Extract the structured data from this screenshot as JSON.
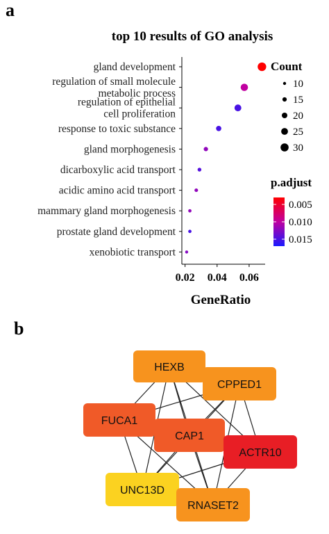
{
  "panels": {
    "a": "a",
    "b": "b"
  },
  "chart_data": {
    "type": "scatter",
    "title": "top 10 results of GO analysis",
    "xlabel": "GeneRatio",
    "ylabel": "",
    "xlim": [
      0.018,
      0.07
    ],
    "xticks": [
      0.02,
      0.04,
      0.06
    ],
    "xtick_labels": [
      "0.02",
      "0.04",
      "0.06"
    ],
    "grid": false,
    "terms": [
      {
        "label": "gland development",
        "lines": [
          "gland development"
        ],
        "gene_ratio": 0.068,
        "count": 32,
        "p_adjust": 0.003
      },
      {
        "label": "regulation of small molecule metabolic process",
        "lines": [
          "regulation of small molecule",
          "metabolic process"
        ],
        "gene_ratio": 0.057,
        "count": 27,
        "p_adjust": 0.01
      },
      {
        "label": "regulation of epithelial cell proliferation",
        "lines": [
          "regulation of epithelial",
          "cell proliferation"
        ],
        "gene_ratio": 0.053,
        "count": 25,
        "p_adjust": 0.015
      },
      {
        "label": "response to toxic substance",
        "lines": [
          "response to toxic substance"
        ],
        "gene_ratio": 0.041,
        "count": 19,
        "p_adjust": 0.015
      },
      {
        "label": "gland morphogenesis",
        "lines": [
          "gland morphogenesis"
        ],
        "gene_ratio": 0.033,
        "count": 15,
        "p_adjust": 0.012
      },
      {
        "label": "dicarboxylic acid transport",
        "lines": [
          "dicarboxylic acid transport"
        ],
        "gene_ratio": 0.029,
        "count": 13,
        "p_adjust": 0.0145
      },
      {
        "label": "acidic amino acid transport",
        "lines": [
          "acidic amino acid transport"
        ],
        "gene_ratio": 0.027,
        "count": 12,
        "p_adjust": 0.012
      },
      {
        "label": "mammary gland morphogenesis",
        "lines": [
          "mammary gland morphogenesis"
        ],
        "gene_ratio": 0.023,
        "count": 11,
        "p_adjust": 0.012
      },
      {
        "label": "prostate gland development",
        "lines": [
          "prostate gland development"
        ],
        "gene_ratio": 0.023,
        "count": 11,
        "p_adjust": 0.015
      },
      {
        "label": "xenobiotic transport",
        "lines": [
          "xenobiotic transport"
        ],
        "gene_ratio": 0.021,
        "count": 10,
        "p_adjust": 0.0125
      }
    ],
    "legend_count": {
      "title": "Count",
      "values": [
        10,
        15,
        20,
        25,
        30
      ],
      "labels": [
        "10",
        "15",
        "20",
        "25",
        "30"
      ],
      "placement": "right"
    },
    "legend_padjust": {
      "title": "p.adjust",
      "range": [
        0.003,
        0.017
      ],
      "ticks": [
        0.005,
        0.01,
        0.015
      ],
      "tick_labels": [
        "0.005",
        "0.010",
        "0.015"
      ],
      "color_low": "#ff0000",
      "color_high": "#1a1aff",
      "placement": "right"
    }
  },
  "network": {
    "nodes": [
      {
        "id": "HEXB",
        "label": "HEXB",
        "color": "#f7931e"
      },
      {
        "id": "CPPED1",
        "label": "CPPED1",
        "color": "#f7931e"
      },
      {
        "id": "FUCA1",
        "label": "FUCA1",
        "color": "#f05a28"
      },
      {
        "id": "CAP1",
        "label": "CAP1",
        "color": "#f05a28"
      },
      {
        "id": "ACTR10",
        "label": "ACTR10",
        "color": "#e81e25"
      },
      {
        "id": "UNC13D",
        "label": "UNC13D",
        "color": "#fbd220"
      },
      {
        "id": "RNASET2",
        "label": "RNASET2",
        "color": "#f7931e"
      }
    ],
    "edges": [
      [
        "HEXB",
        "CPPED1"
      ],
      [
        "HEXB",
        "FUCA1"
      ],
      [
        "HEXB",
        "CAP1"
      ],
      [
        "HEXB",
        "ACTR10"
      ],
      [
        "HEXB",
        "UNC13D"
      ],
      [
        "HEXB",
        "RNASET2"
      ],
      [
        "CPPED1",
        "FUCA1"
      ],
      [
        "CPPED1",
        "CAP1"
      ],
      [
        "CPPED1",
        "ACTR10"
      ],
      [
        "CPPED1",
        "UNC13D"
      ],
      [
        "CPPED1",
        "RNASET2"
      ],
      [
        "FUCA1",
        "CAP1"
      ],
      [
        "FUCA1",
        "ACTR10"
      ],
      [
        "FUCA1",
        "UNC13D"
      ],
      [
        "FUCA1",
        "RNASET2"
      ],
      [
        "CAP1",
        "ACTR10"
      ],
      [
        "CAP1",
        "UNC13D"
      ],
      [
        "CAP1",
        "RNASET2"
      ],
      [
        "ACTR10",
        "UNC13D"
      ],
      [
        "ACTR10",
        "RNASET2"
      ],
      [
        "UNC13D",
        "RNASET2"
      ]
    ]
  }
}
